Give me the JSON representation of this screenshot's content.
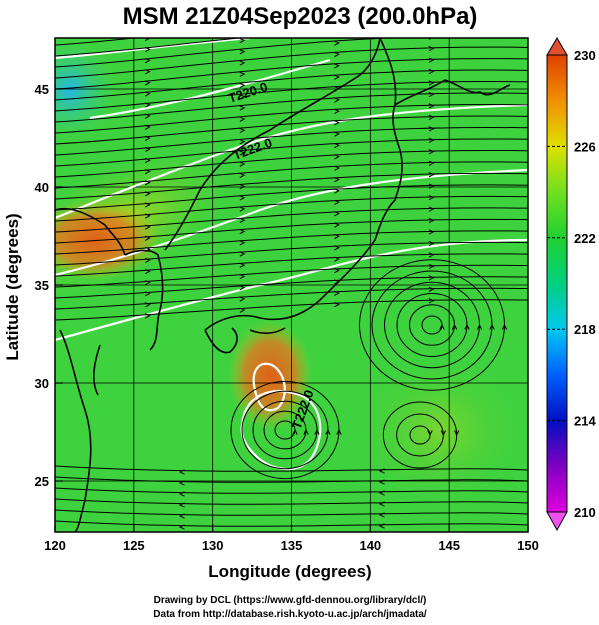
{
  "title": "MSM 21Z04Sep2023 (200.0hPa)",
  "x_axis": {
    "label": "Longitude (degrees)",
    "ticks": [
      "120",
      "125",
      "130",
      "135",
      "140",
      "145",
      "150"
    ],
    "range": [
      120,
      150
    ]
  },
  "y_axis": {
    "label": "Latitude  (degrees)",
    "ticks": [
      "25",
      "30",
      "35",
      "40",
      "45"
    ],
    "range": [
      22.4,
      47.6
    ]
  },
  "colorbar": {
    "ticks": [
      "210",
      "214",
      "218",
      "222",
      "226",
      "230"
    ],
    "range": [
      210,
      230
    ],
    "colors": [
      "#c000c0",
      "#0000c0",
      "#0080ff",
      "#00d0c0",
      "#20d060",
      "#40e040",
      "#c0e020",
      "#f0d000",
      "#f09000",
      "#e05000"
    ]
  },
  "contour_labels": [
    "T220.0",
    "T222.0",
    "T222.0"
  ],
  "credits": {
    "line1": "Drawing by DCL (https://www.gfd-dennou.org/library/dcl/)",
    "line2": "Data from http://database.rish.kyoto-u.ac.jp/arch/jmadata/"
  },
  "colors": {
    "field_base": "#3fd23f",
    "warm": "#e0661a",
    "cool": "#2ab9e0",
    "contour": "#ffffff",
    "coast": "#000000"
  }
}
